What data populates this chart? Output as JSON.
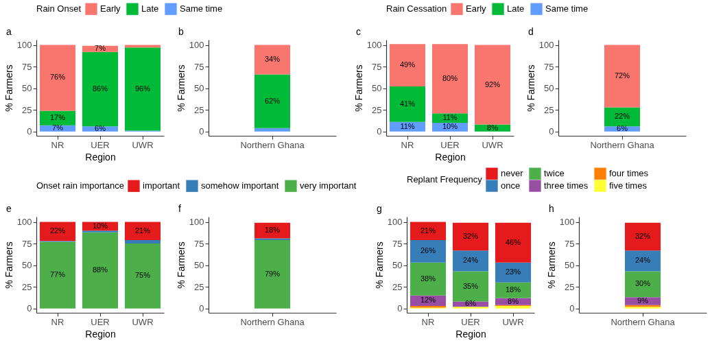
{
  "chart_data": [
    {
      "type": "bar",
      "stacked": true,
      "title": "a",
      "categories": [
        "NR",
        "UER",
        "UWR"
      ],
      "xlabel": "Region",
      "ylabel": "% Farmers",
      "legend_title": "Rain Onset",
      "legend": "top",
      "ylim": [
        -5,
        106
      ],
      "yticks": [
        0,
        25,
        50,
        75,
        100
      ],
      "series": [
        {
          "name": "Same time",
          "color": "#619cff",
          "values": [
            7,
            6,
            1
          ],
          "value_labels": [
            "7%",
            "6%",
            null
          ]
        },
        {
          "name": "Late",
          "color": "#00ba38",
          "values": [
            17,
            86,
            96
          ],
          "value_labels": [
            "17%",
            "86%",
            "96%"
          ]
        },
        {
          "name": "Early",
          "color": "#f8766d",
          "values": [
            76,
            7,
            3
          ],
          "value_labels": [
            "76%",
            "7%",
            null
          ]
        }
      ]
    },
    {
      "type": "bar",
      "stacked": true,
      "title": "b",
      "categories": [
        "Northern Ghana"
      ],
      "ylabel": "% Farmers",
      "legend": "top",
      "ylim": [
        -5,
        106
      ],
      "yticks": [
        0,
        25,
        50,
        75,
        100
      ],
      "series": [
        {
          "name": "Same time",
          "color": "#619cff",
          "values": [
            4
          ],
          "value_labels": [
            null
          ]
        },
        {
          "name": "Late",
          "color": "#00ba38",
          "values": [
            62
          ],
          "value_labels": [
            "62%"
          ]
        },
        {
          "name": "Early",
          "color": "#f8766d",
          "values": [
            34
          ],
          "value_labels": [
            "34%"
          ]
        }
      ]
    },
    {
      "type": "bar",
      "stacked": true,
      "title": "c",
      "categories": [
        "NR",
        "UER",
        "UWR"
      ],
      "xlabel": "Region",
      "ylabel": "% Farmers",
      "legend_title": "Rain Cessation",
      "legend": "top",
      "ylim": [
        -5,
        106
      ],
      "yticks": [
        0,
        25,
        50,
        75,
        100
      ],
      "series": [
        {
          "name": "Same time",
          "color": "#619cff",
          "values": [
            11,
            10,
            0
          ],
          "value_labels": [
            "11%",
            "10%",
            null
          ]
        },
        {
          "name": "Late",
          "color": "#00ba38",
          "values": [
            41,
            11,
            8
          ],
          "value_labels": [
            "41%",
            "11%",
            "8%"
          ]
        },
        {
          "name": "Early",
          "color": "#f8766d",
          "values": [
            49,
            80,
            92
          ],
          "value_labels": [
            "49%",
            "80%",
            "92%"
          ]
        }
      ]
    },
    {
      "type": "bar",
      "stacked": true,
      "title": "d",
      "categories": [
        "Northern Ghana"
      ],
      "ylabel": "% Farmers",
      "legend": "top",
      "ylim": [
        -5,
        106
      ],
      "yticks": [
        0,
        25,
        50,
        75,
        100
      ],
      "series": [
        {
          "name": "Same time",
          "color": "#619cff",
          "values": [
            6
          ],
          "value_labels": [
            "6%"
          ]
        },
        {
          "name": "Late",
          "color": "#00ba38",
          "values": [
            22
          ],
          "value_labels": [
            "22%"
          ]
        },
        {
          "name": "Early",
          "color": "#f8766d",
          "values": [
            72
          ],
          "value_labels": [
            "72%"
          ]
        }
      ]
    },
    {
      "type": "bar",
      "stacked": true,
      "title": "e",
      "categories": [
        "NR",
        "UER",
        "UWR"
      ],
      "xlabel": "Region",
      "ylabel": "% Farmers",
      "legend_title": "Onset rain importance",
      "legend": "top",
      "ylim": [
        -5,
        106
      ],
      "yticks": [
        0,
        25,
        50,
        75,
        100
      ],
      "series": [
        {
          "name": "very important",
          "color": "#4daf4a",
          "values": [
            77,
            88,
            75
          ],
          "value_labels": [
            "77%",
            "88%",
            "75%"
          ]
        },
        {
          "name": "somehow important",
          "color": "#377eb8",
          "values": [
            1,
            2,
            4
          ],
          "value_labels": [
            null,
            null,
            null
          ]
        },
        {
          "name": "important",
          "color": "#e41a1c",
          "values": [
            22,
            10,
            21
          ],
          "value_labels": [
            "22%",
            "10%",
            "21%"
          ]
        }
      ]
    },
    {
      "type": "bar",
      "stacked": true,
      "title": "f",
      "categories": [
        "Northern Ghana"
      ],
      "ylabel": "% Farmers",
      "legend": "top",
      "ylim": [
        -5,
        106
      ],
      "yticks": [
        0,
        25,
        50,
        75,
        100
      ],
      "series": [
        {
          "name": "very important",
          "color": "#4daf4a",
          "values": [
            79
          ],
          "value_labels": [
            "79%"
          ]
        },
        {
          "name": "somehow important",
          "color": "#377eb8",
          "values": [
            2
          ],
          "value_labels": [
            null
          ]
        },
        {
          "name": "important",
          "color": "#e41a1c",
          "values": [
            18
          ],
          "value_labels": [
            "18%"
          ]
        }
      ]
    },
    {
      "type": "bar",
      "stacked": true,
      "title": "g",
      "categories": [
        "NR",
        "UER",
        "UWR"
      ],
      "xlabel": "Region",
      "ylabel": "% Farmers",
      "legend_title": "Replant Frequency",
      "legend": "top",
      "ylim": [
        -5,
        106
      ],
      "yticks": [
        0,
        25,
        50,
        75,
        100
      ],
      "series": [
        {
          "name": "five times",
          "color": "#ffff33",
          "values": [
            1,
            2,
            3
          ],
          "value_labels": [
            null,
            null,
            null
          ]
        },
        {
          "name": "four times",
          "color": "#ff7f00",
          "values": [
            2,
            0,
            1
          ],
          "value_labels": [
            null,
            null,
            null
          ]
        },
        {
          "name": "three times",
          "color": "#984ea3",
          "values": [
            12,
            6,
            8
          ],
          "value_labels": [
            "12%",
            "6%",
            "8%"
          ]
        },
        {
          "name": "twice",
          "color": "#4daf4a",
          "values": [
            38,
            35,
            18
          ],
          "value_labels": [
            "38%",
            "35%",
            "18%"
          ]
        },
        {
          "name": "once",
          "color": "#377eb8",
          "values": [
            26,
            24,
            23
          ],
          "value_labels": [
            "26%",
            "24%",
            "23%"
          ]
        },
        {
          "name": "never",
          "color": "#e41a1c",
          "values": [
            21,
            32,
            46
          ],
          "value_labels": [
            "21%",
            "32%",
            "46%"
          ]
        }
      ]
    },
    {
      "type": "bar",
      "stacked": true,
      "title": "h",
      "categories": [
        "Northern Ghana"
      ],
      "ylabel": "% Farmers",
      "legend": "top",
      "ylim": [
        -5,
        106
      ],
      "yticks": [
        0,
        25,
        50,
        75,
        100
      ],
      "series": [
        {
          "name": "five times",
          "color": "#ffff33",
          "values": [
            2
          ],
          "value_labels": [
            null
          ]
        },
        {
          "name": "four times",
          "color": "#ff7f00",
          "values": [
            2
          ],
          "value_labels": [
            null
          ]
        },
        {
          "name": "three times",
          "color": "#984ea3",
          "values": [
            9
          ],
          "value_labels": [
            "9%"
          ]
        },
        {
          "name": "twice",
          "color": "#4daf4a",
          "values": [
            30
          ],
          "value_labels": [
            "30%"
          ]
        },
        {
          "name": "once",
          "color": "#377eb8",
          "values": [
            24
          ],
          "value_labels": [
            "24%"
          ]
        },
        {
          "name": "never",
          "color": "#e41a1c",
          "values": [
            32
          ],
          "value_labels": [
            "32%"
          ]
        }
      ]
    }
  ]
}
